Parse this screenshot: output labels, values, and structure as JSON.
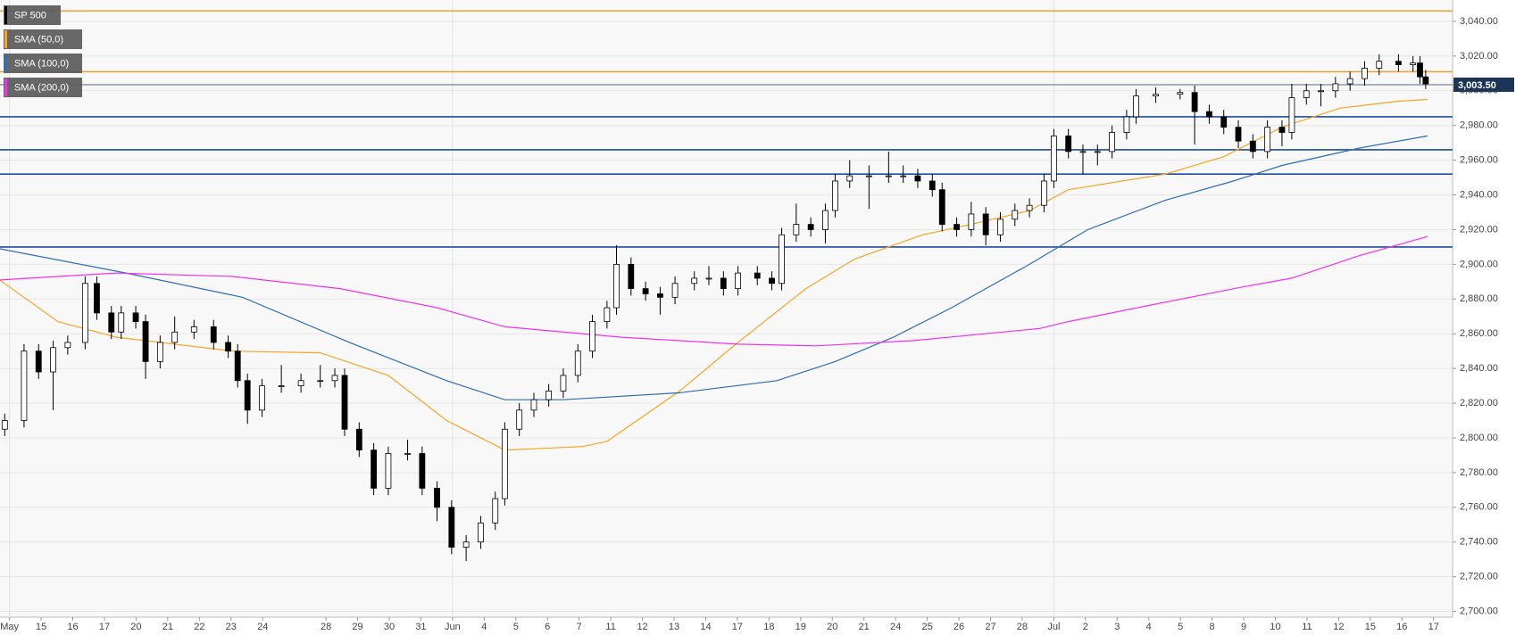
{
  "chart_data": {
    "type": "candlestick",
    "xlim": [
      -0.3,
      45.6
    ],
    "ylim": [
      2696.7,
      3052.3
    ],
    "grid": true,
    "xticks": [
      {
        "value": 0,
        "label": "May"
      },
      {
        "value": 1,
        "label": "15"
      },
      {
        "value": 2,
        "label": "16"
      },
      {
        "value": 3,
        "label": "17"
      },
      {
        "value": 4,
        "label": "20"
      },
      {
        "value": 5,
        "label": "21"
      },
      {
        "value": 6,
        "label": "22"
      },
      {
        "value": 7,
        "label": "23"
      },
      {
        "value": 8,
        "label": "24"
      },
      {
        "value": 10,
        "label": "28"
      },
      {
        "value": 11,
        "label": "29"
      },
      {
        "value": 12,
        "label": "30"
      },
      {
        "value": 13,
        "label": "31"
      },
      {
        "value": 14,
        "label": "Jun"
      },
      {
        "value": 15,
        "label": "4"
      },
      {
        "value": 16,
        "label": "5"
      },
      {
        "value": 17,
        "label": "6"
      },
      {
        "value": 18,
        "label": "7"
      },
      {
        "value": 19,
        "label": "11"
      },
      {
        "value": 20,
        "label": "12"
      },
      {
        "value": 21,
        "label": "13"
      },
      {
        "value": 22,
        "label": "14"
      },
      {
        "value": 23,
        "label": "17"
      },
      {
        "value": 24,
        "label": "18"
      },
      {
        "value": 25,
        "label": "19"
      },
      {
        "value": 26,
        "label": "20"
      },
      {
        "value": 27,
        "label": "21"
      },
      {
        "value": 28,
        "label": "24"
      },
      {
        "value": 29,
        "label": "25"
      },
      {
        "value": 30,
        "label": "26"
      },
      {
        "value": 31,
        "label": "27"
      },
      {
        "value": 32,
        "label": "28"
      },
      {
        "value": 33,
        "label": "Jul"
      },
      {
        "value": 34,
        "label": "2"
      },
      {
        "value": 35,
        "label": "3"
      },
      {
        "value": 36,
        "label": "4"
      },
      {
        "value": 37,
        "label": "5"
      },
      {
        "value": 38,
        "label": "8"
      },
      {
        "value": 39,
        "label": "9"
      },
      {
        "value": 40,
        "label": "10"
      },
      {
        "value": 41,
        "label": "11"
      },
      {
        "value": 42,
        "label": "12"
      },
      {
        "value": 43,
        "label": "15"
      },
      {
        "value": 44,
        "label": "16"
      },
      {
        "value": 45,
        "label": "17"
      }
    ],
    "yticks": [
      {
        "value": 2700,
        "label": "2,700.00"
      },
      {
        "value": 2720,
        "label": "2,720.00"
      },
      {
        "value": 2740,
        "label": "2,740.00"
      },
      {
        "value": 2760,
        "label": "2,760.00"
      },
      {
        "value": 2780,
        "label": "2,780.00"
      },
      {
        "value": 2800,
        "label": "2,800.00"
      },
      {
        "value": 2820,
        "label": "2,820.00"
      },
      {
        "value": 2840,
        "label": "2,840.00"
      },
      {
        "value": 2860,
        "label": "2,860.00"
      },
      {
        "value": 2880,
        "label": "2,880.00"
      },
      {
        "value": 2900,
        "label": "2,900.00"
      },
      {
        "value": 2920,
        "label": "2,920.00"
      },
      {
        "value": 2940,
        "label": "2,940.00"
      },
      {
        "value": 2960,
        "label": "2,960.00"
      },
      {
        "value": 2980,
        "label": "2,980.00"
      },
      {
        "value": 3000,
        "label": "3,000.00"
      },
      {
        "value": 3020,
        "label": "3,020.00"
      },
      {
        "value": 3040,
        "label": "3,040.00"
      }
    ],
    "levels": [
      {
        "value": 3046,
        "color": "#f0a030"
      },
      {
        "value": 3011,
        "color": "#f0a030"
      },
      {
        "value": 2985,
        "color": "#1f4e9c"
      },
      {
        "value": 2966,
        "color": "#1f4e9c"
      },
      {
        "value": 2952,
        "color": "#1f4e9c"
      },
      {
        "value": 2910,
        "color": "#1f4e9c"
      }
    ],
    "last_price": {
      "value": 3003.5,
      "label": "3,003.50"
    },
    "series": [
      {
        "name": "SP 500",
        "type": "candlestick",
        "color": "#000000",
        "x": [
          -0.15,
          0.46,
          0.92,
          1.38,
          1.84,
          2.39,
          2.76,
          3.22,
          3.53,
          3.99,
          4.3,
          4.76,
          5.22,
          5.83,
          6.45,
          6.91,
          7.21,
          7.52,
          7.98,
          8.59,
          9.21,
          9.82,
          10.28,
          10.59,
          11.05,
          11.51,
          11.97,
          12.58,
          13.04,
          13.51,
          13.97,
          14.43,
          14.89,
          15.35,
          15.65,
          16.11,
          16.57,
          17.04,
          17.5,
          17.96,
          18.42,
          18.88,
          19.18,
          19.64,
          20.1,
          20.56,
          21.03,
          21.64,
          22.1,
          22.56,
          23.02,
          23.63,
          24.09,
          24.4,
          24.86,
          25.32,
          25.78,
          26.09,
          26.55,
          27.16,
          27.78,
          28.24,
          28.7,
          29.16,
          29.47,
          29.93,
          30.39,
          30.85,
          31.31,
          31.77,
          32.23,
          32.69,
          33.0,
          33.46,
          33.92,
          34.38,
          34.84,
          35.3,
          35.6,
          36.22,
          36.99,
          37.45,
          37.91,
          38.37,
          38.83,
          39.29,
          39.75,
          40.21,
          40.52,
          40.98,
          41.44,
          41.9,
          42.36,
          42.82,
          43.28,
          43.89,
          44.35,
          44.57,
          44.75
        ],
        "open": [
          2805,
          2810,
          2850,
          2838,
          2852,
          2855,
          2889,
          2872,
          2861,
          2872,
          2867,
          2844,
          2855,
          2861,
          2864,
          2855,
          2850,
          2833,
          2816,
          2830,
          2830,
          2833,
          2833,
          2836,
          2805,
          2793,
          2771,
          2791,
          2791,
          2771,
          2760,
          2737,
          2740,
          2751,
          2765,
          2805,
          2816,
          2822,
          2827,
          2836,
          2850,
          2867,
          2875,
          2900,
          2886,
          2883,
          2881,
          2889,
          2892,
          2892,
          2886,
          2895,
          2892,
          2889,
          2917,
          2923,
          2920,
          2931,
          2948,
          2951,
          2951,
          2951,
          2951,
          2948,
          2943,
          2923,
          2920,
          2929,
          2917,
          2926,
          2931,
          2934,
          2948,
          2974,
          2965,
          2965,
          2965,
          2976,
          2985,
          2997,
          2998,
          2999,
          2988,
          2985,
          2979,
          2971,
          2965,
          2979,
          2976,
          2996,
          3000,
          3000,
          3004,
          3007,
          3013,
          3017,
          3015,
          3016,
          3008
        ],
        "high": [
          2814,
          2854,
          2854,
          2856,
          2859,
          2893,
          2893,
          2876,
          2876,
          2876,
          2871,
          2859,
          2870,
          2868,
          2868,
          2859,
          2854,
          2837,
          2834,
          2842,
          2837,
          2842,
          2840,
          2840,
          2809,
          2797,
          2795,
          2799,
          2795,
          2775,
          2764,
          2744,
          2755,
          2769,
          2809,
          2820,
          2826,
          2831,
          2840,
          2854,
          2871,
          2879,
          2911,
          2904,
          2890,
          2887,
          2893,
          2896,
          2899,
          2896,
          2899,
          2899,
          2896,
          2921,
          2935,
          2927,
          2935,
          2952,
          2960,
          2957,
          2965,
          2957,
          2955,
          2952,
          2947,
          2927,
          2936,
          2933,
          2930,
          2935,
          2938,
          2952,
          2978,
          2978,
          2969,
          2969,
          2980,
          2989,
          3001,
          3002,
          3001,
          3003,
          2992,
          2989,
          2983,
          2975,
          2983,
          2983,
          3004,
          3004,
          3004,
          3008,
          3011,
          3017,
          3021,
          3021,
          3020,
          3020,
          3012
        ],
        "low": [
          2801,
          2806,
          2834,
          2816,
          2848,
          2851,
          2868,
          2857,
          2857,
          2863,
          2834,
          2840,
          2851,
          2857,
          2851,
          2846,
          2829,
          2808,
          2812,
          2826,
          2826,
          2829,
          2829,
          2801,
          2789,
          2767,
          2767,
          2787,
          2767,
          2752,
          2733,
          2729,
          2736,
          2747,
          2761,
          2801,
          2812,
          2818,
          2823,
          2832,
          2846,
          2863,
          2871,
          2882,
          2879,
          2871,
          2877,
          2885,
          2888,
          2882,
          2882,
          2888,
          2885,
          2885,
          2913,
          2916,
          2912,
          2927,
          2944,
          2932,
          2947,
          2947,
          2944,
          2939,
          2919,
          2916,
          2916,
          2911,
          2913,
          2922,
          2927,
          2930,
          2944,
          2961,
          2952,
          2957,
          2961,
          2972,
          2981,
          2993,
          2995,
          2969,
          2981,
          2975,
          2967,
          2961,
          2961,
          2968,
          2972,
          2992,
          2991,
          2996,
          3000,
          3003,
          3009,
          3011,
          3011,
          3004,
          3001
        ],
        "close": [
          2810,
          2850,
          2838,
          2852,
          2855,
          2889,
          2872,
          2861,
          2872,
          2867,
          2844,
          2855,
          2861,
          2864,
          2855,
          2850,
          2833,
          2816,
          2830,
          2830,
          2833,
          2833,
          2836,
          2805,
          2793,
          2771,
          2791,
          2791,
          2771,
          2760,
          2737,
          2740,
          2751,
          2765,
          2805,
          2816,
          2822,
          2827,
          2836,
          2850,
          2867,
          2875,
          2900,
          2886,
          2883,
          2881,
          2889,
          2892,
          2892,
          2886,
          2895,
          2892,
          2889,
          2917,
          2923,
          2920,
          2931,
          2948,
          2951,
          2951,
          2951,
          2951,
          2948,
          2943,
          2923,
          2920,
          2929,
          2917,
          2926,
          2931,
          2934,
          2948,
          2974,
          2965,
          2965,
          2965,
          2976,
          2985,
          2997,
          2998,
          2999,
          2988,
          2985,
          2979,
          2971,
          2965,
          2979,
          2976,
          2996,
          3000,
          3000,
          3004,
          3007,
          3013,
          3017,
          3015,
          3016,
          3008,
          3004
        ]
      },
      {
        "name": "SMA (50,0)",
        "type": "line",
        "color": "#f5a623",
        "x": [
          -0.31,
          1.53,
          3.38,
          7.06,
          9.82,
          11.97,
          13.81,
          15.65,
          18.11,
          18.88,
          21.18,
          23.02,
          25.17,
          26.7,
          28.85,
          30.39,
          32.23,
          33.46,
          36.53,
          38.37,
          40.21,
          42.05,
          43.89,
          44.81
        ],
        "values": [
          2891,
          2867,
          2858,
          2850,
          2849,
          2836,
          2810,
          2793,
          2795,
          2798,
          2827,
          2855,
          2886,
          2903,
          2917,
          2923,
          2931,
          2943,
          2952,
          2962,
          2979,
          2990,
          2994,
          2995
        ]
      },
      {
        "name": "SMA (100,0)",
        "type": "line",
        "color": "#2f6db5",
        "x": [
          -0.31,
          3.68,
          7.37,
          10.74,
          13.81,
          15.65,
          17.5,
          21.18,
          24.25,
          26.09,
          27.93,
          29.77,
          32.23,
          34.07,
          36.53,
          38.67,
          40.21,
          42.66,
          44.81
        ],
        "values": [
          2909,
          2895,
          2881,
          2855,
          2833,
          2822,
          2822,
          2826,
          2833,
          2844,
          2858,
          2875,
          2900,
          2920,
          2937,
          2948,
          2957,
          2967,
          2974
        ]
      },
      {
        "name": "SMA (200,0)",
        "type": "line",
        "color": "#ee33ee",
        "x": [
          -0.31,
          3.38,
          7.06,
          10.44,
          13.51,
          15.65,
          19.34,
          23.02,
          25.48,
          28.54,
          32.54,
          33.46,
          35.91,
          38.98,
          40.52,
          42.66,
          44.81
        ],
        "values": [
          2891,
          2895,
          2893,
          2886,
          2875,
          2864,
          2858,
          2854,
          2853,
          2856,
          2863,
          2867,
          2876,
          2887,
          2892,
          2905,
          2916
        ]
      }
    ]
  }
}
